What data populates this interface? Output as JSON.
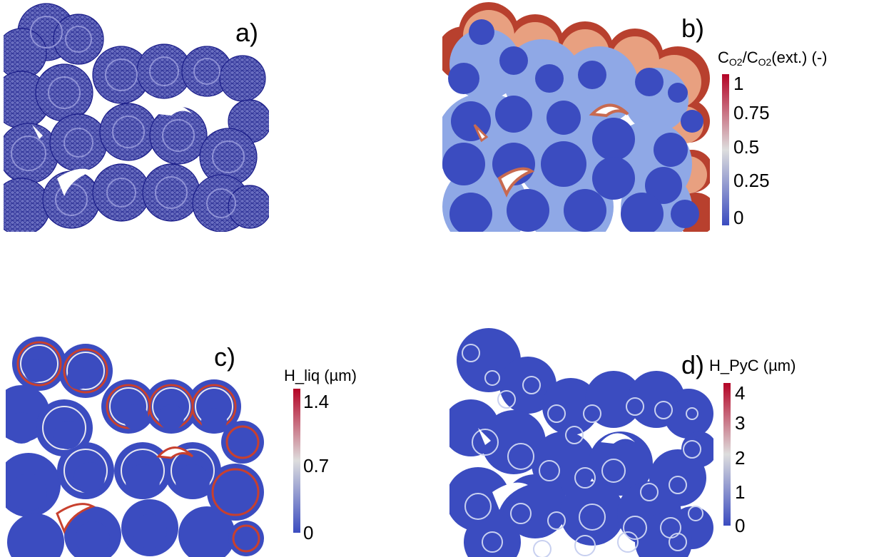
{
  "panels": {
    "a": {
      "label": "a)"
    },
    "b": {
      "label": "b)",
      "colorbar": {
        "title_main": "C",
        "title_sub1": "O2",
        "title_mid": "/C",
        "title_sub2": "O2",
        "title_end": "(ext.) (-)",
        "ticks": [
          "1",
          "0.75",
          "0.5",
          "0.25",
          "0"
        ]
      }
    },
    "c": {
      "label": "c)",
      "colorbar": {
        "title": "H_liq (µm)",
        "ticks": [
          "1.4",
          "0.7",
          "0"
        ]
      }
    },
    "d": {
      "label": "d)",
      "colorbar": {
        "title": "H_PyC (µm)",
        "ticks": [
          "4",
          "3",
          "2",
          "1",
          "0"
        ]
      }
    }
  },
  "colors": {
    "mesh_fill": "#5a5fb0",
    "mesh_line": "#1c1f8a",
    "field_low": "#3b4cc0",
    "field_mid": "#dddddd",
    "field_high": "#b40426"
  }
}
